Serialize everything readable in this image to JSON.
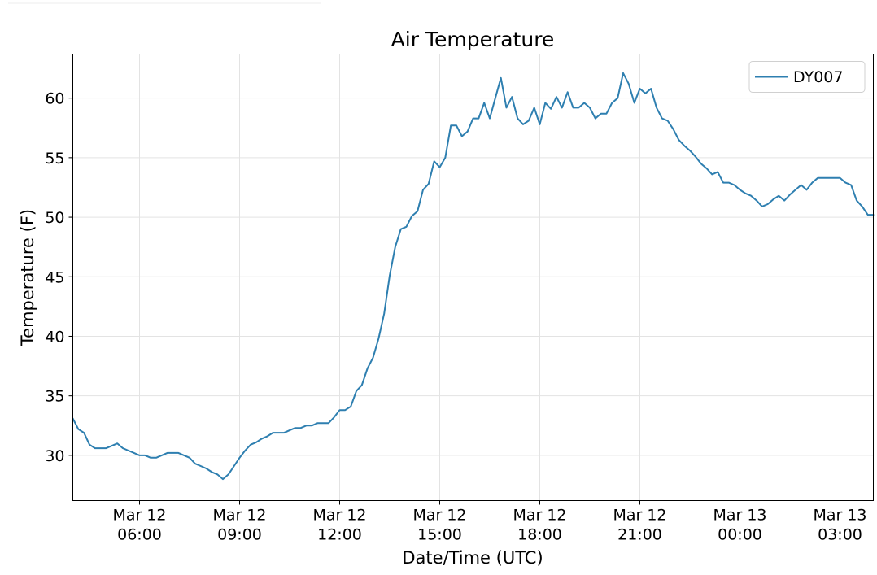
{
  "chart_data": {
    "type": "line",
    "title": "Air Temperature",
    "xlabel": "Date/Time (UTC)",
    "ylabel": "Temperature (F)",
    "x_unit": "hours (UTC)",
    "xlim": [
      "2024-03-12 04:00",
      "2024-03-13 04:00"
    ],
    "ylim": [
      26.2,
      63.7
    ],
    "grid": true,
    "legend_position": "top-right",
    "x_ticks": [
      {
        "x": "2024-03-12 06:00",
        "label": [
          "Mar 12",
          "06:00"
        ]
      },
      {
        "x": "2024-03-12 09:00",
        "label": [
          "Mar 12",
          "09:00"
        ]
      },
      {
        "x": "2024-03-12 12:00",
        "label": [
          "Mar 12",
          "12:00"
        ]
      },
      {
        "x": "2024-03-12 15:00",
        "label": [
          "Mar 12",
          "15:00"
        ]
      },
      {
        "x": "2024-03-12 18:00",
        "label": [
          "Mar 12",
          "18:00"
        ]
      },
      {
        "x": "2024-03-12 21:00",
        "label": [
          "Mar 12",
          "21:00"
        ]
      },
      {
        "x": "2024-03-13 00:00",
        "label": [
          "Mar 13",
          "00:00"
        ]
      },
      {
        "x": "2024-03-13 03:00",
        "label": [
          "Mar 13",
          "03:00"
        ]
      }
    ],
    "y_ticks": [
      30,
      35,
      40,
      45,
      50,
      55,
      60
    ],
    "series": [
      {
        "name": "DY007",
        "color": "#2e7fb0",
        "points": [
          [
            "2024-03-12 04:00",
            33.1
          ],
          [
            "2024-03-12 04:10",
            32.2
          ],
          [
            "2024-03-12 04:20",
            31.9
          ],
          [
            "2024-03-12 04:30",
            30.9
          ],
          [
            "2024-03-12 04:40",
            30.6
          ],
          [
            "2024-03-12 04:50",
            30.6
          ],
          [
            "2024-03-12 05:00",
            30.6
          ],
          [
            "2024-03-12 05:10",
            30.8
          ],
          [
            "2024-03-12 05:20",
            31.0
          ],
          [
            "2024-03-12 05:30",
            30.6
          ],
          [
            "2024-03-12 05:40",
            30.4
          ],
          [
            "2024-03-12 05:50",
            30.2
          ],
          [
            "2024-03-12 06:00",
            30.0
          ],
          [
            "2024-03-12 06:10",
            30.0
          ],
          [
            "2024-03-12 06:20",
            29.8
          ],
          [
            "2024-03-12 06:30",
            29.8
          ],
          [
            "2024-03-12 06:40",
            30.0
          ],
          [
            "2024-03-12 06:50",
            30.2
          ],
          [
            "2024-03-12 07:00",
            30.2
          ],
          [
            "2024-03-12 07:10",
            30.2
          ],
          [
            "2024-03-12 07:20",
            30.0
          ],
          [
            "2024-03-12 07:30",
            29.8
          ],
          [
            "2024-03-12 07:40",
            29.3
          ],
          [
            "2024-03-12 07:50",
            29.1
          ],
          [
            "2024-03-12 08:00",
            28.9
          ],
          [
            "2024-03-12 08:10",
            28.6
          ],
          [
            "2024-03-12 08:20",
            28.4
          ],
          [
            "2024-03-12 08:30",
            28.0
          ],
          [
            "2024-03-12 08:40",
            28.4
          ],
          [
            "2024-03-12 08:50",
            29.1
          ],
          [
            "2024-03-12 09:00",
            29.8
          ],
          [
            "2024-03-12 09:10",
            30.4
          ],
          [
            "2024-03-12 09:20",
            30.9
          ],
          [
            "2024-03-12 09:30",
            31.1
          ],
          [
            "2024-03-12 09:40",
            31.4
          ],
          [
            "2024-03-12 09:50",
            31.6
          ],
          [
            "2024-03-12 10:00",
            31.9
          ],
          [
            "2024-03-12 10:10",
            31.9
          ],
          [
            "2024-03-12 10:20",
            31.9
          ],
          [
            "2024-03-12 10:30",
            32.1
          ],
          [
            "2024-03-12 10:40",
            32.3
          ],
          [
            "2024-03-12 10:50",
            32.3
          ],
          [
            "2024-03-12 11:00",
            32.5
          ],
          [
            "2024-03-12 11:10",
            32.5
          ],
          [
            "2024-03-12 11:20",
            32.7
          ],
          [
            "2024-03-12 11:30",
            32.7
          ],
          [
            "2024-03-12 11:40",
            32.7
          ],
          [
            "2024-03-12 11:50",
            33.2
          ],
          [
            "2024-03-12 12:00",
            33.8
          ],
          [
            "2024-03-12 12:10",
            33.8
          ],
          [
            "2024-03-12 12:20",
            34.1
          ],
          [
            "2024-03-12 12:30",
            35.4
          ],
          [
            "2024-03-12 12:40",
            35.9
          ],
          [
            "2024-03-12 12:50",
            37.3
          ],
          [
            "2024-03-12 13:00",
            38.2
          ],
          [
            "2024-03-12 13:10",
            39.8
          ],
          [
            "2024-03-12 13:20",
            41.9
          ],
          [
            "2024-03-12 13:30",
            45.1
          ],
          [
            "2024-03-12 13:40",
            47.5
          ],
          [
            "2024-03-12 13:50",
            49.0
          ],
          [
            "2024-03-12 14:00",
            49.2
          ],
          [
            "2024-03-12 14:10",
            50.1
          ],
          [
            "2024-03-12 14:20",
            50.5
          ],
          [
            "2024-03-12 14:30",
            52.3
          ],
          [
            "2024-03-12 14:40",
            52.8
          ],
          [
            "2024-03-12 14:50",
            54.7
          ],
          [
            "2024-03-12 15:00",
            54.2
          ],
          [
            "2024-03-12 15:10",
            55.0
          ],
          [
            "2024-03-12 15:20",
            57.7
          ],
          [
            "2024-03-12 15:30",
            57.7
          ],
          [
            "2024-03-12 15:40",
            56.8
          ],
          [
            "2024-03-12 15:50",
            57.2
          ],
          [
            "2024-03-12 16:00",
            58.3
          ],
          [
            "2024-03-12 16:10",
            58.3
          ],
          [
            "2024-03-12 16:20",
            59.6
          ],
          [
            "2024-03-12 16:30",
            58.3
          ],
          [
            "2024-03-12 16:40",
            60.0
          ],
          [
            "2024-03-12 16:50",
            61.7
          ],
          [
            "2024-03-12 17:00",
            59.2
          ],
          [
            "2024-03-12 17:10",
            60.1
          ],
          [
            "2024-03-12 17:20",
            58.3
          ],
          [
            "2024-03-12 17:30",
            57.8
          ],
          [
            "2024-03-12 17:40",
            58.1
          ],
          [
            "2024-03-12 17:50",
            59.2
          ],
          [
            "2024-03-12 18:00",
            57.8
          ],
          [
            "2024-03-12 18:10",
            59.6
          ],
          [
            "2024-03-12 18:20",
            59.1
          ],
          [
            "2024-03-12 18:30",
            60.1
          ],
          [
            "2024-03-12 18:40",
            59.2
          ],
          [
            "2024-03-12 18:50",
            60.5
          ],
          [
            "2024-03-12 19:00",
            59.2
          ],
          [
            "2024-03-12 19:10",
            59.2
          ],
          [
            "2024-03-12 19:20",
            59.6
          ],
          [
            "2024-03-12 19:30",
            59.2
          ],
          [
            "2024-03-12 19:40",
            58.3
          ],
          [
            "2024-03-12 19:50",
            58.7
          ],
          [
            "2024-03-12 20:00",
            58.7
          ],
          [
            "2024-03-12 20:10",
            59.6
          ],
          [
            "2024-03-12 20:20",
            60.0
          ],
          [
            "2024-03-12 20:30",
            62.1
          ],
          [
            "2024-03-12 20:40",
            61.2
          ],
          [
            "2024-03-12 20:50",
            59.6
          ],
          [
            "2024-03-12 21:00",
            60.8
          ],
          [
            "2024-03-12 21:10",
            60.4
          ],
          [
            "2024-03-12 21:20",
            60.8
          ],
          [
            "2024-03-12 21:30",
            59.2
          ],
          [
            "2024-03-12 21:40",
            58.3
          ],
          [
            "2024-03-12 21:50",
            58.1
          ],
          [
            "2024-03-12 22:00",
            57.4
          ],
          [
            "2024-03-12 22:10",
            56.5
          ],
          [
            "2024-03-12 22:20",
            56.0
          ],
          [
            "2024-03-12 22:30",
            55.6
          ],
          [
            "2024-03-12 22:40",
            55.1
          ],
          [
            "2024-03-12 22:50",
            54.5
          ],
          [
            "2024-03-12 23:00",
            54.1
          ],
          [
            "2024-03-12 23:10",
            53.6
          ],
          [
            "2024-03-12 23:20",
            53.8
          ],
          [
            "2024-03-12 23:30",
            52.9
          ],
          [
            "2024-03-12 23:40",
            52.9
          ],
          [
            "2024-03-12 23:50",
            52.7
          ],
          [
            "2024-03-13 00:00",
            52.3
          ],
          [
            "2024-03-13 00:10",
            52.0
          ],
          [
            "2024-03-13 00:20",
            51.8
          ],
          [
            "2024-03-13 00:30",
            51.4
          ],
          [
            "2024-03-13 00:40",
            50.9
          ],
          [
            "2024-03-13 00:50",
            51.1
          ],
          [
            "2024-03-13 01:00",
            51.5
          ],
          [
            "2024-03-13 01:10",
            51.8
          ],
          [
            "2024-03-13 01:20",
            51.4
          ],
          [
            "2024-03-13 01:30",
            51.9
          ],
          [
            "2024-03-13 01:40",
            52.3
          ],
          [
            "2024-03-13 01:50",
            52.7
          ],
          [
            "2024-03-13 02:00",
            52.3
          ],
          [
            "2024-03-13 02:10",
            52.9
          ],
          [
            "2024-03-13 02:20",
            53.3
          ],
          [
            "2024-03-13 02:30",
            53.3
          ],
          [
            "2024-03-13 02:40",
            53.3
          ],
          [
            "2024-03-13 02:50",
            53.3
          ],
          [
            "2024-03-13 03:00",
            53.3
          ],
          [
            "2024-03-13 03:10",
            52.9
          ],
          [
            "2024-03-13 03:20",
            52.7
          ],
          [
            "2024-03-13 03:30",
            51.4
          ],
          [
            "2024-03-13 03:40",
            50.9
          ],
          [
            "2024-03-13 03:50",
            50.2
          ],
          [
            "2024-03-13 04:00",
            50.2
          ]
        ]
      }
    ]
  }
}
